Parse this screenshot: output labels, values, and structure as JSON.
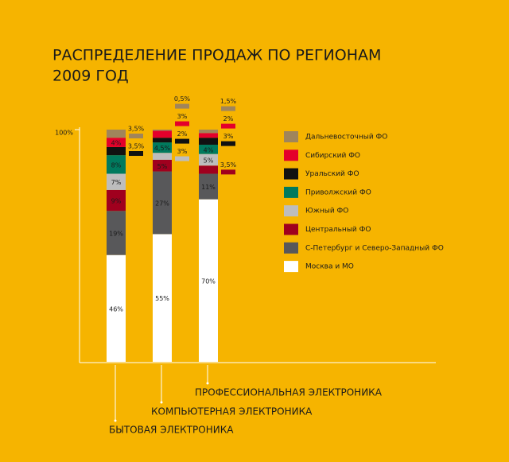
{
  "chart_data": {
    "type": "stacked-bar",
    "title": "РАСПРЕДЕЛЕНИЕ ПРОДАЖ ПО РЕГИОНАМ",
    "subtitle": "2009 ГОД",
    "categories": [
      "БЫТОВАЯ ЭЛЕКТРОНИКА",
      "КОМПЬЮТЕРНАЯ ЭЛЕКТРОНИКА",
      "ПРОФЕССИОНАЛЬНАЯ ЭЛЕКТРОНИКА"
    ],
    "ylim": [
      0,
      100
    ],
    "yticks": [
      {
        "value": 100,
        "label": "100%"
      }
    ],
    "series": [
      {
        "name": "Москва и МО",
        "color": "#ffffff",
        "values": [
          46,
          55,
          70
        ],
        "value_labels": [
          "46%",
          "55%",
          "70%"
        ]
      },
      {
        "name": "С-Петербург и Северо-Западный ФО",
        "color": "#58585a",
        "values": [
          19,
          27,
          11
        ],
        "value_labels": [
          "19%",
          "27%",
          "11%"
        ]
      },
      {
        "name": "Центральный ФО",
        "color": "#a0001e",
        "values": [
          9,
          5,
          3.5
        ],
        "value_labels": [
          "9%",
          "5%",
          "3,5%"
        ]
      },
      {
        "name": "Южный ФО",
        "color": "#bdbdbd",
        "values": [
          7,
          3,
          5
        ],
        "value_labels": [
          "7%",
          "3%",
          "5%"
        ]
      },
      {
        "name": "Приволжский ФО",
        "color": "#007a5e",
        "values": [
          8,
          4.5,
          4
        ],
        "value_labels": [
          "8%",
          "4,5%",
          "4%"
        ]
      },
      {
        "name": "Уральский ФО",
        "color": "#111111",
        "values": [
          3.5,
          2,
          3
        ],
        "value_labels": [
          "3,5%",
          "2%",
          "3%"
        ]
      },
      {
        "name": "Сибирский ФО",
        "color": "#e4002b",
        "values": [
          4,
          3,
          2
        ],
        "value_labels": [
          "4%",
          "3%",
          "2%"
        ]
      },
      {
        "name": "Дальневосточный ФО",
        "color": "#a0855b",
        "values": [
          3.5,
          0.5,
          1.5
        ],
        "value_labels": [
          "3,5%",
          "0,5%",
          "1,5%"
        ]
      }
    ]
  }
}
